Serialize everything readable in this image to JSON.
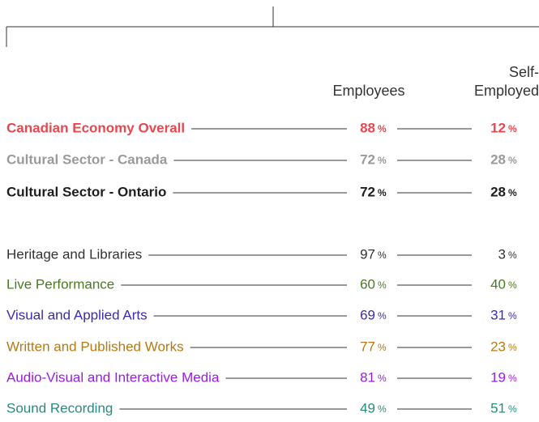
{
  "headers": {
    "employees": "Employees",
    "self_employed": [
      "Self-",
      "Employed"
    ]
  },
  "unit": "%",
  "rows": [
    {
      "label": "Canadian Economy Overall",
      "color": "#e8474f",
      "emphasis": true,
      "employees": 88,
      "self_employed": 12
    },
    {
      "label": "Cultural Sector - Canada",
      "color": "#9a9a9a",
      "emphasis": true,
      "employees": 72,
      "self_employed": 28
    },
    {
      "label": "Cultural Sector - Ontario",
      "color": "#1e1e1e",
      "emphasis": true,
      "employees": 72,
      "self_employed": 28
    },
    {
      "label": "Heritage and Libraries",
      "color": "#333333",
      "emphasis": false,
      "employees": 97,
      "self_employed": 3
    },
    {
      "label": "Live Performance",
      "color": "#4a7a22",
      "emphasis": false,
      "employees": 60,
      "self_employed": 40
    },
    {
      "label": "Visual and Applied Arts",
      "color": "#3a2db0",
      "emphasis": false,
      "employees": 69,
      "self_employed": 31
    },
    {
      "label": "Written and Published Works",
      "color": "#b87a10",
      "emphasis": false,
      "employees": 77,
      "self_employed": 23
    },
    {
      "label": "Audio-Visual and Interactive Media",
      "color": "#9b1ee0",
      "emphasis": false,
      "employees": 81,
      "self_employed": 19
    },
    {
      "label": "Sound Recording",
      "color": "#2a8a80",
      "emphasis": false,
      "employees": 49,
      "self_employed": 51
    }
  ]
}
